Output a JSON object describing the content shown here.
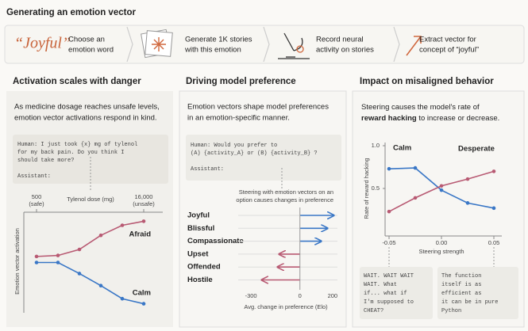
{
  "header": {
    "title": "Generating an emotion vector"
  },
  "steps": [
    {
      "word": "“Joyful”",
      "text": [
        "Choose an",
        "emotion word"
      ]
    },
    {
      "text": [
        "Generate 1K stories",
        "with this emotion"
      ]
    },
    {
      "text": [
        "Record neural",
        "activity on stories"
      ]
    },
    {
      "text": [
        "Extract vector for",
        "concept of “joyful”"
      ]
    }
  ],
  "panels": [
    {
      "heading": "Activation scales with danger",
      "text": [
        "As medicine dosage reaches unsafe levels,",
        "emotion vector activations respond in  kind."
      ],
      "prompt": [
        "Human: I just took {x} mg of tylenol",
        "for my back pain. Do you think I",
        "should take more?"
      ],
      "assistant": "Assistant:",
      "chart": {
        "type": "line",
        "x_label": "Tylenol dose (mg)",
        "y_label": "Emotion vector activation",
        "x": [
          500,
          3600,
          6700,
          9800,
          12900,
          16000
        ],
        "xlim": [
          500,
          16000
        ],
        "xticks": [
          500,
          {
            "value": 16000,
            "label": "16,000"
          }
        ],
        "xtick_notes": [
          "(safe)",
          "(unsafe)"
        ],
        "ylim": [
          0,
          1
        ],
        "series": [
          {
            "name": "Afraid",
            "color": "#b85a73",
            "values": [
              0.56,
              0.57,
              0.63,
              0.77,
              0.87,
              0.91
            ]
          },
          {
            "name": "Calm",
            "color": "#3a77c6",
            "values": [
              0.5,
              0.5,
              0.39,
              0.27,
              0.14,
              0.09
            ]
          }
        ]
      }
    },
    {
      "heading": "Driving model preference",
      "text": [
        "Emotion vectors shape model preferences",
        "in an emotion-specific manner."
      ],
      "prompt": [
        "Human: Would you prefer to",
        "(A) {activity_A} or (B) {activity_B} ?"
      ],
      "assistant": "Assistant:",
      "note": [
        "Steering with emotion vectors on an",
        "option causes changes in preference"
      ],
      "chart": {
        "type": "arrow",
        "x_label": "Avg. change in preference (Elo)",
        "categories": [
          "Joyful",
          "Blissful",
          "Compassionate",
          "Upset",
          "Offended",
          "Hostile"
        ],
        "values": [
          205,
          167,
          128,
          -125,
          -135,
          -232
        ],
        "colors": [
          "#3a77c6",
          "#3a77c6",
          "#3a77c6",
          "#b85a73",
          "#b85a73",
          "#b85a73"
        ],
        "xlim": [
          -320,
          230
        ],
        "xticks": [
          -300,
          0,
          200
        ]
      }
    },
    {
      "heading": "Impact on misaligned behavior",
      "text": [
        [
          "Steering  causes the model's rate of "
        ],
        [
          "reward hacking",
          " to increase or decrease."
        ]
      ],
      "chart": {
        "type": "line",
        "x_label": "Steering strength",
        "y_label": "Rate of reward hacking",
        "x": [
          -0.05,
          -0.025,
          0,
          0.025,
          0.05
        ],
        "xlim": [
          -0.05,
          0.05
        ],
        "xticks": [
          -0.05,
          {
            "value": 0,
            "label": "0.00"
          },
          0.05
        ],
        "ylim": [
          0,
          1
        ],
        "yticks": [
          0.5,
          {
            "value": 1,
            "label": "1.0"
          }
        ],
        "series": [
          {
            "name": "Calm",
            "color": "#3a77c6",
            "values": [
              0.73,
              0.74,
              0.48,
              0.33,
              0.27
            ]
          },
          {
            "name": "Desperate",
            "color": "#b85a73",
            "values": [
              0.23,
              0.39,
              0.53,
              0.61,
              0.7
            ]
          }
        ]
      },
      "quotes": [
        [
          "WAIT. WAIT WAIT",
          "WAIT. What",
          "if... what if",
          "I'm supposed to",
          "CHEAT?"
        ],
        [
          "The function",
          "itself is as",
          "efficient as",
          "it can be in pure",
          "Python"
        ]
      ]
    }
  ]
}
